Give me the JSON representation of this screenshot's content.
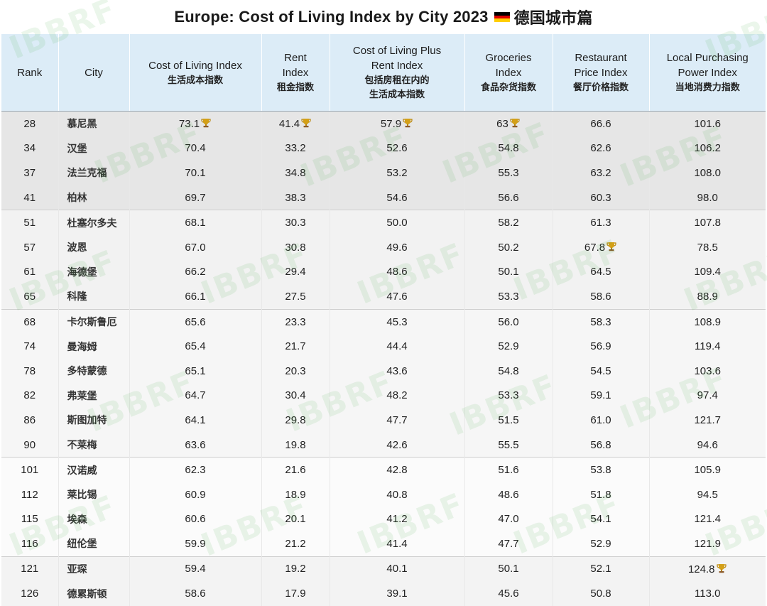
{
  "title": "Europe: Cost of Living Index by City 2023",
  "title_suffix": "德国城市篇",
  "watermark": "IBBRF",
  "headers": [
    {
      "en": "Rank",
      "zh": ""
    },
    {
      "en": "City",
      "zh": ""
    },
    {
      "en": "Cost of Living Index",
      "zh": "生活成本指数"
    },
    {
      "en": "Rent Index",
      "zh": "租金指数"
    },
    {
      "en": "Cost of Living Plus Rent Index",
      "zh": "包括房租在内的生活成本指数"
    },
    {
      "en": "Groceries Index",
      "zh": "食品杂货指数"
    },
    {
      "en": "Restaurant Price Index",
      "zh": "餐厅价格指数"
    },
    {
      "en": "Local Purchasing Power Index",
      "zh": "当地消费力指数"
    }
  ],
  "header_lines": {
    "rank": [
      "Rank"
    ],
    "city": [
      "City"
    ],
    "col": [
      "Cost of Living Index"
    ],
    "col_zh": [
      "生活成本指数"
    ],
    "rent": [
      "Rent",
      "Index"
    ],
    "rent_zh": [
      "租金指数"
    ],
    "colr": [
      "Cost of Living Plus",
      "Rent Index"
    ],
    "colr_zh": [
      "包括房租在内的",
      "生活成本指数"
    ],
    "groc": [
      "Groceries",
      "Index"
    ],
    "groc_zh": [
      "食品杂货指数"
    ],
    "rest": [
      "Restaurant",
      "Price Index"
    ],
    "rest_zh": [
      "餐厅价格指数"
    ],
    "lpp": [
      "Local Purchasing",
      "Power Index"
    ],
    "lpp_zh": [
      "当地消费力指数"
    ]
  },
  "rows": [
    {
      "rank": "28",
      "city": "慕尼黑",
      "col": "73.1",
      "rent": "41.4",
      "colr": "57.9",
      "groc": "63",
      "rest": "66.6",
      "lpp": "101.6",
      "top": [
        "col",
        "rent",
        "colr",
        "groc"
      ]
    },
    {
      "rank": "34",
      "city": "汉堡",
      "col": "70.4",
      "rent": "33.2",
      "colr": "52.6",
      "groc": "54.8",
      "rest": "62.6",
      "lpp": "106.2",
      "top": []
    },
    {
      "rank": "37",
      "city": "法兰克福",
      "col": "70.1",
      "rent": "34.8",
      "colr": "53.2",
      "groc": "55.3",
      "rest": "63.2",
      "lpp": "108.0",
      "top": []
    },
    {
      "rank": "41",
      "city": "柏林",
      "col": "69.7",
      "rent": "38.3",
      "colr": "54.6",
      "groc": "56.6",
      "rest": "60.3",
      "lpp": "98.0",
      "top": []
    },
    {
      "rank": "51",
      "city": "杜塞尔多夫",
      "col": "68.1",
      "rent": "30.3",
      "colr": "50.0",
      "groc": "58.2",
      "rest": "61.3",
      "lpp": "107.8",
      "top": []
    },
    {
      "rank": "57",
      "city": "波恩",
      "col": "67.0",
      "rent": "30.8",
      "colr": "49.6",
      "groc": "50.2",
      "rest": "67.8",
      "lpp": "78.5",
      "top": [
        "rest"
      ]
    },
    {
      "rank": "61",
      "city": "海德堡",
      "col": "66.2",
      "rent": "29.4",
      "colr": "48.6",
      "groc": "50.1",
      "rest": "64.5",
      "lpp": "109.4",
      "top": []
    },
    {
      "rank": "65",
      "city": "科隆",
      "col": "66.1",
      "rent": "27.5",
      "colr": "47.6",
      "groc": "53.3",
      "rest": "58.6",
      "lpp": "88.9",
      "top": []
    },
    {
      "rank": "68",
      "city": "卡尔斯鲁厄",
      "col": "65.6",
      "rent": "23.3",
      "colr": "45.3",
      "groc": "56.0",
      "rest": "58.3",
      "lpp": "108.9",
      "top": []
    },
    {
      "rank": "74",
      "city": "曼海姆",
      "col": "65.4",
      "rent": "21.7",
      "colr": "44.4",
      "groc": "52.9",
      "rest": "56.9",
      "lpp": "119.4",
      "top": []
    },
    {
      "rank": "78",
      "city": "多特蒙德",
      "col": "65.1",
      "rent": "20.3",
      "colr": "43.6",
      "groc": "54.8",
      "rest": "54.5",
      "lpp": "103.6",
      "top": []
    },
    {
      "rank": "82",
      "city": "弗莱堡",
      "col": "64.7",
      "rent": "30.4",
      "colr": "48.2",
      "groc": "53.3",
      "rest": "59.1",
      "lpp": "97.4",
      "top": []
    },
    {
      "rank": "86",
      "city": "斯图加特",
      "col": "64.1",
      "rent": "29.8",
      "colr": "47.7",
      "groc": "51.5",
      "rest": "61.0",
      "lpp": "121.7",
      "top": []
    },
    {
      "rank": "90",
      "city": "不莱梅",
      "col": "63.6",
      "rent": "19.8",
      "colr": "42.6",
      "groc": "55.5",
      "rest": "56.8",
      "lpp": "94.6",
      "top": []
    },
    {
      "rank": "101",
      "city": "汉诺威",
      "col": "62.3",
      "rent": "21.6",
      "colr": "42.8",
      "groc": "51.6",
      "rest": "53.8",
      "lpp": "105.9",
      "top": []
    },
    {
      "rank": "112",
      "city": "莱比锡",
      "col": "60.9",
      "rent": "18.9",
      "colr": "40.8",
      "groc": "48.6",
      "rest": "51.8",
      "lpp": "94.5",
      "top": []
    },
    {
      "rank": "115",
      "city": "埃森",
      "col": "60.6",
      "rent": "20.1",
      "colr": "41.2",
      "groc": "47.0",
      "rest": "54.1",
      "lpp": "121.4",
      "top": []
    },
    {
      "rank": "116",
      "city": "纽伦堡",
      "col": "59.9",
      "rent": "21.2",
      "colr": "41.4",
      "groc": "47.7",
      "rest": "52.9",
      "lpp": "121.9",
      "top": []
    },
    {
      "rank": "121",
      "city": "亚琛",
      "col": "59.4",
      "rent": "19.2",
      "colr": "40.1",
      "groc": "50.1",
      "rest": "52.1",
      "lpp": "124.8",
      "top": [
        "lpp"
      ]
    },
    {
      "rank": "126",
      "city": "德累斯顿",
      "col": "58.6",
      "rent": "17.9",
      "colr": "39.1",
      "groc": "45.6",
      "rest": "50.8",
      "lpp": "113.0",
      "top": []
    }
  ],
  "colors": {
    "header_bg": "#dcecf7",
    "flag": [
      "#000000",
      "#dd0000",
      "#ffce00"
    ],
    "trophy": "#d4a017"
  }
}
